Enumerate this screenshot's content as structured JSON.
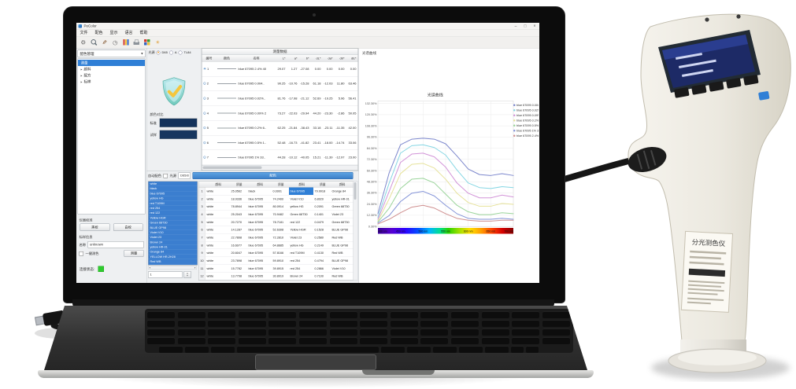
{
  "app": {
    "title": "PeColor",
    "window_controls": [
      "–",
      "□",
      "×"
    ],
    "menu": [
      "文件",
      "配色",
      "显示",
      "语言",
      "帮助"
    ],
    "toolbar": [
      {
        "name": "settings-gear-icon",
        "type": "gear",
        "glyph": "⚙"
      },
      {
        "name": "zoom-icon",
        "type": "zoom",
        "glyph": ""
      },
      {
        "name": "edit-pen-icon",
        "type": "pen",
        "glyph": "✎"
      },
      {
        "name": "history-clock-icon",
        "type": "clock",
        "glyph": "◷"
      },
      {
        "name": "color-bars-icon",
        "type": "colorbars",
        "glyph": ""
      },
      {
        "name": "print-icon",
        "type": "printer",
        "glyph": ""
      },
      {
        "name": "palette-icon",
        "type": "palette",
        "glyph": ""
      },
      {
        "name": "light-source-icon",
        "type": "sun",
        "glyph": "☀"
      }
    ],
    "sidebar": {
      "library_select": "配色管理",
      "select_arrow": "▾",
      "tree": [
        {
          "label": "测量",
          "selected": true
        },
        {
          "label": "颜料",
          "selected": false
        },
        {
          "label": "配方",
          "selected": false
        },
        {
          "label": "标样",
          "selected": false
        }
      ],
      "calibration_title": "仪器校准",
      "calibration_buttons": [
        "黑校",
        "白校"
      ],
      "standard_info_title": "标样信息",
      "name_label": "名称",
      "name_value": "unknown",
      "onekey_label": "一键测色",
      "measure_button": "测量",
      "connection_label": "连接状态:",
      "connection_color": "#2ecc2e"
    },
    "illuminant": {
      "label": "光源",
      "options": [
        {
          "label": "D65",
          "selected": true
        },
        {
          "label": "A",
          "selected": false
        },
        {
          "label": "TL84",
          "selected": false
        }
      ]
    },
    "compare": {
      "group_label": "颜色对比",
      "standard_label": "标准",
      "sample_label": "试样",
      "standard_color": "#14335c",
      "sample_color": "#16365f"
    },
    "measure_table": {
      "title": "测量数据",
      "columns": [
        "编号",
        "颜色",
        "名称",
        "L*",
        "a*",
        "b*",
        "dL*",
        "da*",
        "db*",
        "dE*"
      ],
      "rows": [
        {
          "no": "1",
          "swatch": "#0e3a6b",
          "name": "blue 67095 2.4% 40",
          "L": "29.07",
          "a": "1.27",
          "b": "-27.08",
          "dL": "0.00",
          "da": "0.00",
          "db": "0.00",
          "dE": "0.00"
        },
        {
          "no": "2",
          "swatch": "#c2e6f8",
          "name": "blue 67095 0.004..",
          "L": "90.25",
          "a": "-10.76",
          "b": "-15.28",
          "dL": "61.18",
          "da": "-12.03",
          "db": "11.80",
          "dE": "63.46"
        },
        {
          "no": "3",
          "swatch": "#a6d9f3",
          "name": "blue 67095 0.02%..",
          "L": "81.76",
          "a": "-17.98",
          "b": "-21.12",
          "dL": "52.69",
          "da": "-19.25",
          "db": "5.96",
          "dE": "56.41"
        },
        {
          "no": "4",
          "swatch": "#83c6ec",
          "name": "blue 67095 0.09% 2",
          "L": "73.27",
          "a": "-22.03",
          "b": "-29.94",
          "dL": "44.20",
          "da": "-23.30",
          "db": "-2.86",
          "dE": "50.05"
        },
        {
          "no": "5",
          "swatch": "#5cb0e0",
          "name": "blue 67095 0.2% 6..",
          "L": "62.25",
          "a": "-21.84",
          "b": "-38.43",
          "dL": "33.18",
          "da": "-23.11",
          "db": "-11.35",
          "dE": "42.00"
        },
        {
          "no": "6",
          "swatch": "#3d99d2",
          "name": "blue 67095 0.5% 1..",
          "L": "52.48",
          "a": "-16.73",
          "b": "-41.82",
          "dL": "23.41",
          "da": "-18.00",
          "db": "-14.74",
          "dE": "33.06"
        },
        {
          "no": "7",
          "swatch": "#2d7fbf",
          "name": "blue 67095 1% 33..",
          "L": "44.28",
          "a": "-10.12",
          "b": "-40.05",
          "dL": "15.21",
          "da": "-11.39",
          "db": "-12.97",
          "dE": "23.00"
        }
      ]
    },
    "matching": {
      "auto_label": "自动配色",
      "illuminant_label": "光源",
      "illuminant_value": "D65/8",
      "match_button": "配色",
      "pigments": [
        "white",
        "black",
        "blue 67095",
        "yellow HG",
        "red T109M",
        "red 254",
        "red 122",
        "Yellow HGR",
        "Green 68T30",
        "BLUE GP98",
        "Violet V10",
        "Violet 23",
        "Brown 24",
        "yellow HR-01",
        "Orange 84",
        "YELLOW HR-2H28",
        "Red WB"
      ],
      "count_value": "1",
      "recipe_columns": [
        "颜料",
        "质量",
        "颜料",
        "质量",
        "颜料",
        "质量",
        "颜料"
      ],
      "recipe_rows": [
        [
          "white",
          "25.0562",
          "black",
          "0.0001",
          "blue 67095",
          "79.9918",
          "Orange 84"
        ],
        [
          "white",
          "18.9336",
          "blue 67095",
          "74.2400",
          "Violet V10",
          "6.8020",
          "yellow HR-01"
        ],
        [
          "white",
          "78.8944",
          "blue 67095",
          "80.0914",
          "yellow HG",
          "0.2091",
          "Green 68T30"
        ],
        [
          "white",
          "25.2043",
          "blue 67095",
          "70.9482",
          "Green 68T30",
          "0.1401",
          "Violet 23"
        ],
        [
          "white",
          "20.7270",
          "blue 67095",
          "78.7181",
          "red 122",
          "0.0479",
          "Green 68T30"
        ],
        [
          "white",
          "14.1287",
          "blue 67095",
          "52.6308",
          "Yellow HGR",
          "0.1528",
          "BLUE GP98"
        ],
        [
          "white",
          "22.7808",
          "blue 67095",
          "72.2810",
          "Violet 23",
          "0.2580",
          "Red WB"
        ],
        [
          "white",
          "16.6077",
          "blue 67095",
          "64.8885",
          "yellow HG",
          "0.2149",
          "BLUE GP98"
        ],
        [
          "white",
          "20.6047",
          "blue 67095",
          "57.8166",
          "red T109M",
          "0.4130",
          "Red WB"
        ],
        [
          "white",
          "23.7898",
          "blue 67095",
          "59.8910",
          "red 254",
          "0.4794",
          "BLUE GP98"
        ],
        [
          "white",
          "15.7782",
          "blue 67095",
          "39.8915",
          "red 254",
          "0.2866",
          "Violet V10"
        ],
        [
          "white",
          "13.7798",
          "blue 67095",
          "30.8919",
          "Brown 24",
          "0.7100",
          "Red WB"
        ]
      ],
      "selected_cell": {
        "row": 0,
        "col": 4
      }
    }
  },
  "chart_data": {
    "type": "line",
    "title": "光谱曲线",
    "panel_label": "光谱曲线",
    "xlabel": "nm",
    "x": [
      400,
      425,
      450,
      475,
      500,
      525,
      550,
      575,
      600,
      625,
      650,
      675,
      700
    ],
    "x_ticks": [
      "400 nm",
      "450 nm",
      "500 nm",
      "550 nm",
      "600 nm",
      "650 nm",
      "700 nm"
    ],
    "y_ticks": [
      "0.30%",
      "12.30%",
      "24.30%",
      "36.30%",
      "48.30%",
      "60.30%",
      "72.30%",
      "84.30%",
      "96.30%",
      "108.30%",
      "120.30%",
      "132.30%"
    ],
    "ylim": [
      0,
      135
    ],
    "grid": true,
    "legend_position": "right",
    "series": [
      {
        "name": "blue 67095 0.004..",
        "color": "#7b86cc",
        "values": [
          14,
          58,
          88,
          94,
          95,
          94,
          89,
          76,
          62,
          56,
          55,
          57,
          55
        ]
      },
      {
        "name": "blue 67095 0.02%..",
        "color": "#85d6e3",
        "values": [
          10,
          47,
          79,
          87,
          88,
          85,
          77,
          61,
          47,
          42,
          41,
          43,
          42
        ]
      },
      {
        "name": "blue 67095 0.09% 2",
        "color": "#d294d8",
        "values": [
          8,
          38,
          69,
          78,
          79,
          75,
          64,
          47,
          36,
          31,
          31,
          34,
          32
        ]
      },
      {
        "name": "blue 67095 0.2% 6..",
        "color": "#e6e29a",
        "values": [
          6,
          30,
          57,
          67,
          68,
          63,
          51,
          36,
          26,
          22,
          22,
          25,
          24
        ]
      },
      {
        "name": "blue 67095 0.5% 1..",
        "color": "#9ad49a",
        "values": [
          5,
          20,
          41,
          51,
          52,
          47,
          35,
          23,
          16,
          13,
          13,
          15,
          14
        ]
      },
      {
        "name": "blue 67095 1% 33..",
        "color": "#8494d8",
        "values": [
          4,
          12,
          27,
          36,
          38,
          33,
          23,
          14,
          9,
          8,
          8,
          9,
          8
        ]
      },
      {
        "name": "blue 67095 2.4% 40",
        "color": "#cf8f8f",
        "values": [
          3,
          8,
          15,
          21,
          23,
          20,
          14,
          9,
          7,
          6,
          6,
          7,
          7
        ]
      }
    ]
  },
  "device": {
    "label_title": "分光测色仪"
  }
}
